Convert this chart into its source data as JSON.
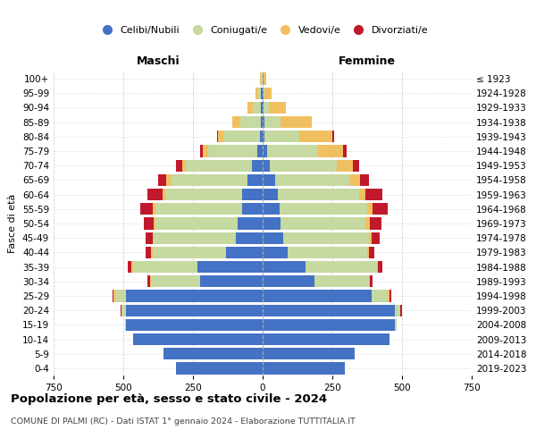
{
  "age_groups": [
    "0-4",
    "5-9",
    "10-14",
    "15-19",
    "20-24",
    "25-29",
    "30-34",
    "35-39",
    "40-44",
    "45-49",
    "50-54",
    "55-59",
    "60-64",
    "65-69",
    "70-74",
    "75-79",
    "80-84",
    "85-89",
    "90-94",
    "95-99",
    "100+"
  ],
  "birth_years": [
    "2019-2023",
    "2014-2018",
    "2009-2013",
    "2004-2008",
    "1999-2003",
    "1994-1998",
    "1989-1993",
    "1984-1988",
    "1979-1983",
    "1974-1978",
    "1969-1973",
    "1964-1968",
    "1959-1963",
    "1954-1958",
    "1949-1953",
    "1944-1948",
    "1939-1943",
    "1934-1938",
    "1929-1933",
    "1924-1928",
    "≤ 1923"
  ],
  "males": {
    "celibi": [
      310,
      355,
      465,
      490,
      490,
      490,
      225,
      235,
      130,
      95,
      90,
      75,
      75,
      55,
      40,
      20,
      10,
      5,
      5,
      5,
      0
    ],
    "coniugati": [
      0,
      0,
      0,
      5,
      15,
      40,
      175,
      230,
      265,
      295,
      295,
      310,
      275,
      275,
      235,
      175,
      130,
      75,
      30,
      10,
      5
    ],
    "vedovi": [
      0,
      0,
      0,
      0,
      0,
      5,
      5,
      5,
      5,
      5,
      5,
      10,
      10,
      15,
      15,
      20,
      20,
      30,
      20,
      10,
      5
    ],
    "divorziati": [
      0,
      0,
      0,
      0,
      5,
      5,
      10,
      15,
      20,
      25,
      35,
      45,
      55,
      30,
      20,
      10,
      5,
      0,
      0,
      0,
      0
    ]
  },
  "females": {
    "nubili": [
      295,
      330,
      455,
      475,
      475,
      390,
      185,
      155,
      90,
      75,
      65,
      60,
      55,
      45,
      25,
      15,
      5,
      5,
      2,
      2,
      2
    ],
    "coniugate": [
      0,
      0,
      0,
      5,
      20,
      60,
      195,
      255,
      285,
      305,
      305,
      315,
      290,
      270,
      240,
      185,
      125,
      60,
      20,
      5,
      2
    ],
    "vedove": [
      0,
      0,
      0,
      0,
      0,
      5,
      5,
      5,
      5,
      10,
      15,
      20,
      25,
      35,
      60,
      90,
      120,
      110,
      60,
      25,
      10
    ],
    "divorziate": [
      0,
      0,
      0,
      0,
      5,
      5,
      10,
      15,
      20,
      30,
      40,
      55,
      60,
      30,
      20,
      10,
      5,
      0,
      0,
      0,
      0
    ]
  },
  "colors": {
    "celibi": "#4472C4",
    "coniugati": "#C5D9A0",
    "vedovi": "#F0C060",
    "divorziati": "#C0192C"
  },
  "xlim": 750,
  "title": "Popolazione per età, sesso e stato civile - 2024",
  "subtitle": "COMUNE DI PALMI (RC) - Dati ISTAT 1° gennaio 2024 - Elaborazione TUTTITALIA.IT",
  "legend_labels": [
    "Celibi/Nubili",
    "Coniugati/e",
    "Vedovi/e",
    "Divorziati/e"
  ],
  "ylabel_left": "Fasce di età",
  "xlabel_left": "Maschi",
  "xlabel_right": "Femmine"
}
